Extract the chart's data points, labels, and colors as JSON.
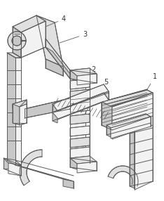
{
  "background_color": "#ffffff",
  "line_color": "#5a5a5a",
  "face_light": "#f2f2f2",
  "face_mid": "#e0e0e0",
  "face_dark": "#c8c8c8",
  "face_darker": "#b8b8b8",
  "figsize": [
    2.34,
    2.86
  ],
  "dpi": 100,
  "label_fontsize": 7,
  "label_color": "#333333"
}
